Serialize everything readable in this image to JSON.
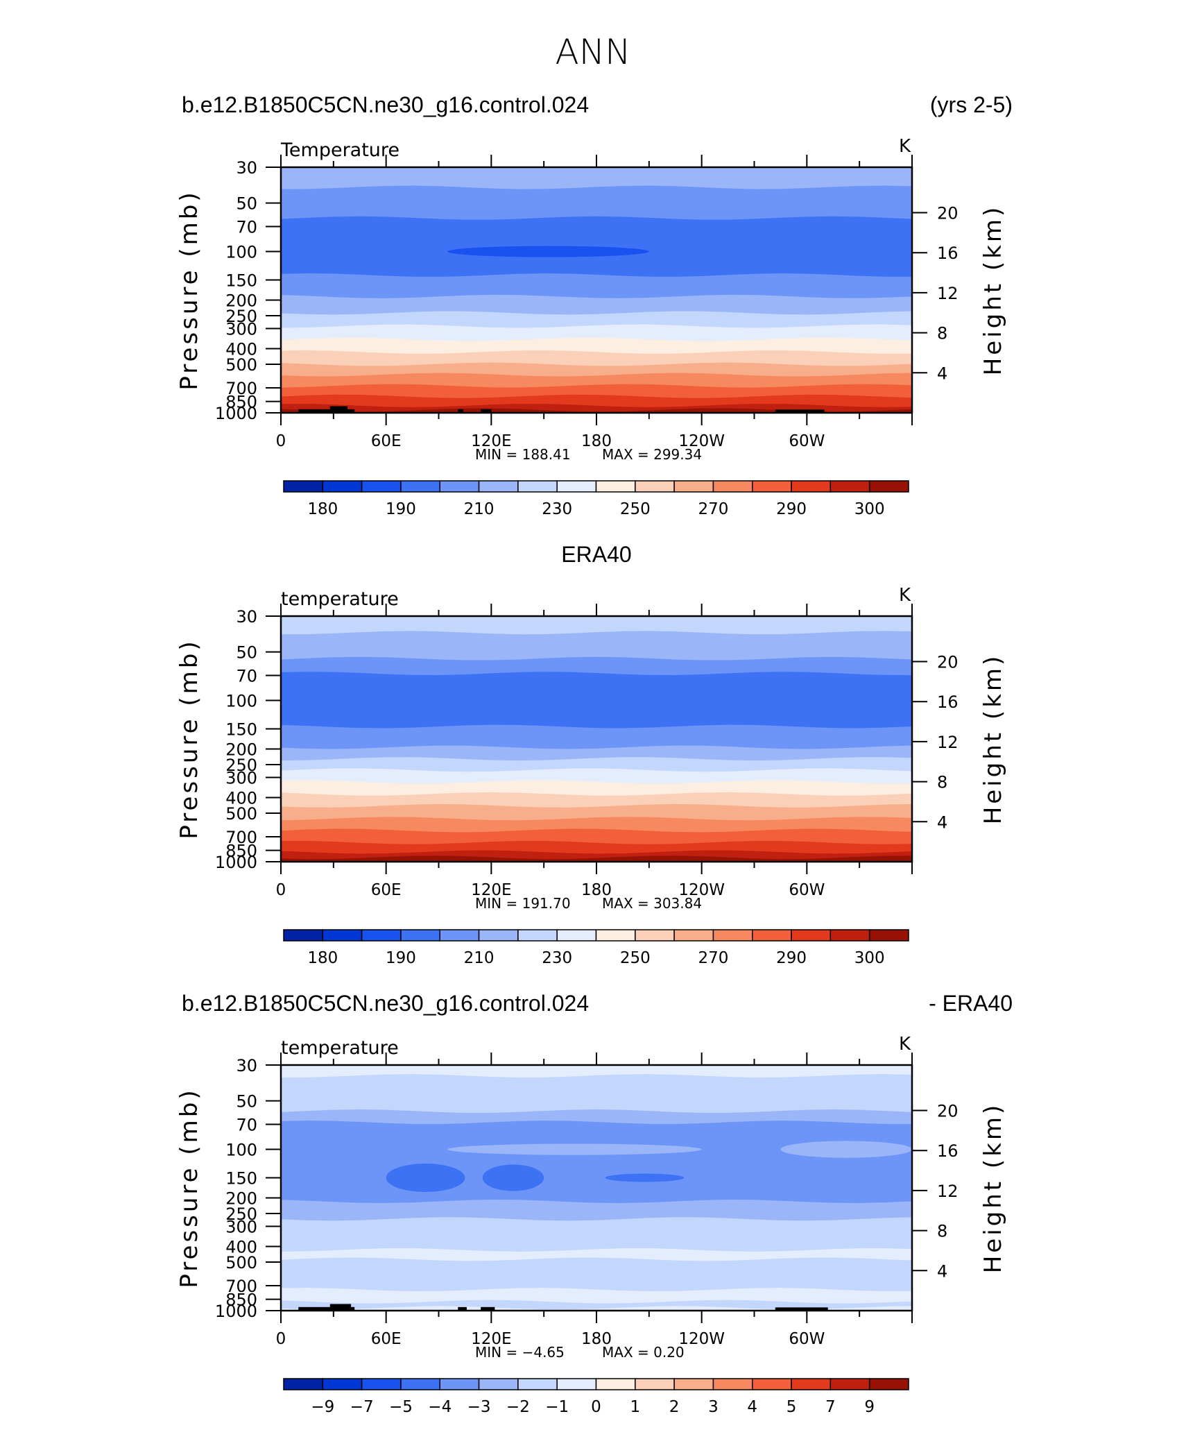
{
  "page_title": "ANN",
  "colors": {
    "temp_scale": [
      "#000080",
      "#0022a6",
      "#0038d6",
      "#1a52ef",
      "#3e72f5",
      "#6d95f7",
      "#9ab6f9",
      "#c3d6fb",
      "#e4edfd",
      "#fdeee2",
      "#fbd0b8",
      "#f9ae8b",
      "#f6895f",
      "#f2603a",
      "#e33a1d",
      "#c0200f",
      "#951205",
      "#800000"
    ],
    "diff_scale": [
      "#000080",
      "#0022a6",
      "#0038d6",
      "#1a52ef",
      "#3e72f5",
      "#6d95f7",
      "#9ab6f9",
      "#c3d6fb",
      "#e4edfd",
      "#fdeee2",
      "#fbd0b8",
      "#f9ae8b",
      "#f6895f",
      "#f2603a",
      "#e33a1d",
      "#c0200f",
      "#951205",
      "#800000"
    ],
    "topography": "#000000"
  },
  "chart_data": [
    {
      "type": "heatmap",
      "panel_id": "model",
      "header_left": "b.e12.B1850C5CN.ne30_g16.control.024",
      "header_right": "(yrs 2-5)",
      "title": "Temperature",
      "units": "K",
      "xlabel": "",
      "ylabel": "Pressure (mb)",
      "ylabel_right": "Height (km)",
      "x_ticks": [
        "0",
        "60E",
        "120E",
        "180",
        "120W",
        "60W"
      ],
      "x_tick_values": [
        0,
        60,
        120,
        180,
        240,
        300
      ],
      "xlim": [
        0,
        360
      ],
      "y_ticks": [
        "30",
        "50",
        "70",
        "100",
        "150",
        "200",
        "250",
        "300",
        "400",
        "500",
        "700",
        "850",
        "1000"
      ],
      "y_tick_values": [
        30,
        50,
        70,
        100,
        150,
        200,
        250,
        300,
        400,
        500,
        700,
        850,
        1000
      ],
      "ylim": [
        1000,
        30
      ],
      "height_ticks": [
        "20",
        "16",
        "12",
        "8",
        "4"
      ],
      "height_tick_values": [
        20,
        16,
        12,
        8,
        4
      ],
      "min_label": "MIN  =  188.41",
      "max_label": "MAX  =  299.34",
      "min": 188.41,
      "max": 299.34,
      "colorbar_labels": [
        "180",
        "190",
        "210",
        "230",
        "250",
        "270",
        "290",
        "300"
      ],
      "colorbar_bins": 16,
      "level_profile": [
        {
          "p": 30,
          "bin": 5
        },
        {
          "p": 40,
          "bin": 4
        },
        {
          "p": 62,
          "bin": 3
        },
        {
          "p": 140,
          "bin": 4
        },
        {
          "p": 190,
          "bin": 5
        },
        {
          "p": 240,
          "bin": 6
        },
        {
          "p": 290,
          "bin": 7
        },
        {
          "p": 350,
          "bin": 8
        },
        {
          "p": 420,
          "bin": 9
        },
        {
          "p": 500,
          "bin": 10
        },
        {
          "p": 580,
          "bin": 11
        },
        {
          "p": 680,
          "bin": 12
        },
        {
          "p": 790,
          "bin": 13
        },
        {
          "p": 900,
          "bin": 14
        },
        {
          "p": 960,
          "bin": 15
        }
      ],
      "blobs": [
        {
          "lon0": 95,
          "lon1": 210,
          "p": 100,
          "bin": 2,
          "dp": 8
        }
      ],
      "topo": [
        {
          "lon0": 10,
          "lon1": 42,
          "p": 950
        },
        {
          "lon0": 28,
          "lon1": 38,
          "p": 910
        },
        {
          "lon0": 101,
          "lon1": 104,
          "p": 950
        },
        {
          "lon0": 114,
          "lon1": 120,
          "p": 950
        },
        {
          "lon0": 282,
          "lon1": 310,
          "p": 955
        }
      ]
    },
    {
      "type": "heatmap",
      "panel_id": "obs",
      "header_center": "ERA40",
      "title": "temperature",
      "units": "K",
      "xlabel": "",
      "ylabel": "Pressure (mb)",
      "ylabel_right": "Height (km)",
      "x_ticks": [
        "0",
        "60E",
        "120E",
        "180",
        "120W",
        "60W"
      ],
      "x_tick_values": [
        0,
        60,
        120,
        180,
        240,
        300
      ],
      "xlim": [
        0,
        360
      ],
      "y_ticks": [
        "30",
        "50",
        "70",
        "100",
        "150",
        "200",
        "250",
        "300",
        "400",
        "500",
        "700",
        "850",
        "1000"
      ],
      "y_tick_values": [
        30,
        50,
        70,
        100,
        150,
        200,
        250,
        300,
        400,
        500,
        700,
        850,
        1000
      ],
      "ylim": [
        1000,
        30
      ],
      "height_ticks": [
        "20",
        "16",
        "12",
        "8",
        "4"
      ],
      "height_tick_values": [
        20,
        16,
        12,
        8,
        4
      ],
      "min_label": "MIN  =  191.70",
      "max_label": "MAX  =  303.84",
      "min": 191.7,
      "max": 303.84,
      "colorbar_labels": [
        "180",
        "190",
        "210",
        "230",
        "250",
        "270",
        "290",
        "300"
      ],
      "colorbar_bins": 16,
      "level_profile": [
        {
          "p": 30,
          "bin": 6
        },
        {
          "p": 38,
          "bin": 5
        },
        {
          "p": 55,
          "bin": 4
        },
        {
          "p": 68,
          "bin": 3
        },
        {
          "p": 145,
          "bin": 4
        },
        {
          "p": 195,
          "bin": 5
        },
        {
          "p": 230,
          "bin": 6
        },
        {
          "p": 270,
          "bin": 7
        },
        {
          "p": 320,
          "bin": 8
        },
        {
          "p": 380,
          "bin": 9
        },
        {
          "p": 450,
          "bin": 10
        },
        {
          "p": 540,
          "bin": 11
        },
        {
          "p": 640,
          "bin": 12
        },
        {
          "p": 760,
          "bin": 13
        },
        {
          "p": 870,
          "bin": 14
        },
        {
          "p": 940,
          "bin": 15
        }
      ],
      "blobs": [],
      "topo": []
    },
    {
      "type": "heatmap",
      "panel_id": "diff",
      "header_left": "b.e12.B1850C5CN.ne30_g16.control.024",
      "header_right": "- ERA40",
      "title": "temperature",
      "units": "K",
      "xlabel": "",
      "ylabel": "Pressure (mb)",
      "ylabel_right": "Height (km)",
      "x_ticks": [
        "0",
        "60E",
        "120E",
        "180",
        "120W",
        "60W"
      ],
      "x_tick_values": [
        0,
        60,
        120,
        180,
        240,
        300
      ],
      "xlim": [
        0,
        360
      ],
      "y_ticks": [
        "30",
        "50",
        "70",
        "100",
        "150",
        "200",
        "250",
        "300",
        "400",
        "500",
        "700",
        "850",
        "1000"
      ],
      "y_tick_values": [
        30,
        50,
        70,
        100,
        150,
        200,
        250,
        300,
        400,
        500,
        700,
        850,
        1000
      ],
      "ylim": [
        1000,
        30
      ],
      "height_ticks": [
        "20",
        "16",
        "12",
        "8",
        "4"
      ],
      "height_tick_values": [
        20,
        16,
        12,
        8,
        4
      ],
      "min_label": "MIN  =     −4.65",
      "max_label": "MAX  =      0.20",
      "min": -4.65,
      "max": 0.2,
      "colorbar_labels": [
        "−9",
        "−7",
        "−5",
        "−4",
        "−3",
        "−2",
        "−1",
        "0",
        "1",
        "2",
        "3",
        "4",
        "5",
        "7",
        "9"
      ],
      "colorbar_bins": 16,
      "level_profile": [
        {
          "p": 30,
          "bin": 7
        },
        {
          "p": 35,
          "bin": 6
        },
        {
          "p": 58,
          "bin": 5
        },
        {
          "p": 68,
          "bin": 4
        },
        {
          "p": 210,
          "bin": 5
        },
        {
          "p": 270,
          "bin": 6
        },
        {
          "p": 420,
          "bin": 7
        },
        {
          "p": 480,
          "bin": 6
        },
        {
          "p": 740,
          "bin": 7
        },
        {
          "p": 880,
          "bin": 6
        },
        {
          "p": 960,
          "bin": 7
        }
      ],
      "blobs": [
        {
          "lon0": 60,
          "lon1": 105,
          "p": 150,
          "bin": 3,
          "dp": 30
        },
        {
          "lon0": 115,
          "lon1": 150,
          "p": 150,
          "bin": 3,
          "dp": 28
        },
        {
          "lon0": 185,
          "lon1": 230,
          "p": 150,
          "bin": 3,
          "dp": 8
        },
        {
          "lon0": 95,
          "lon1": 240,
          "p": 100,
          "bin": 5,
          "dp": 8
        },
        {
          "lon0": 285,
          "lon1": 360,
          "p": 100,
          "bin": 5,
          "dp": 12
        }
      ],
      "topo": [
        {
          "lon0": 10,
          "lon1": 42,
          "p": 950
        },
        {
          "lon0": 28,
          "lon1": 40,
          "p": 910
        },
        {
          "lon0": 101,
          "lon1": 106,
          "p": 950
        },
        {
          "lon0": 114,
          "lon1": 122,
          "p": 950
        },
        {
          "lon0": 282,
          "lon1": 312,
          "p": 955
        }
      ]
    }
  ]
}
